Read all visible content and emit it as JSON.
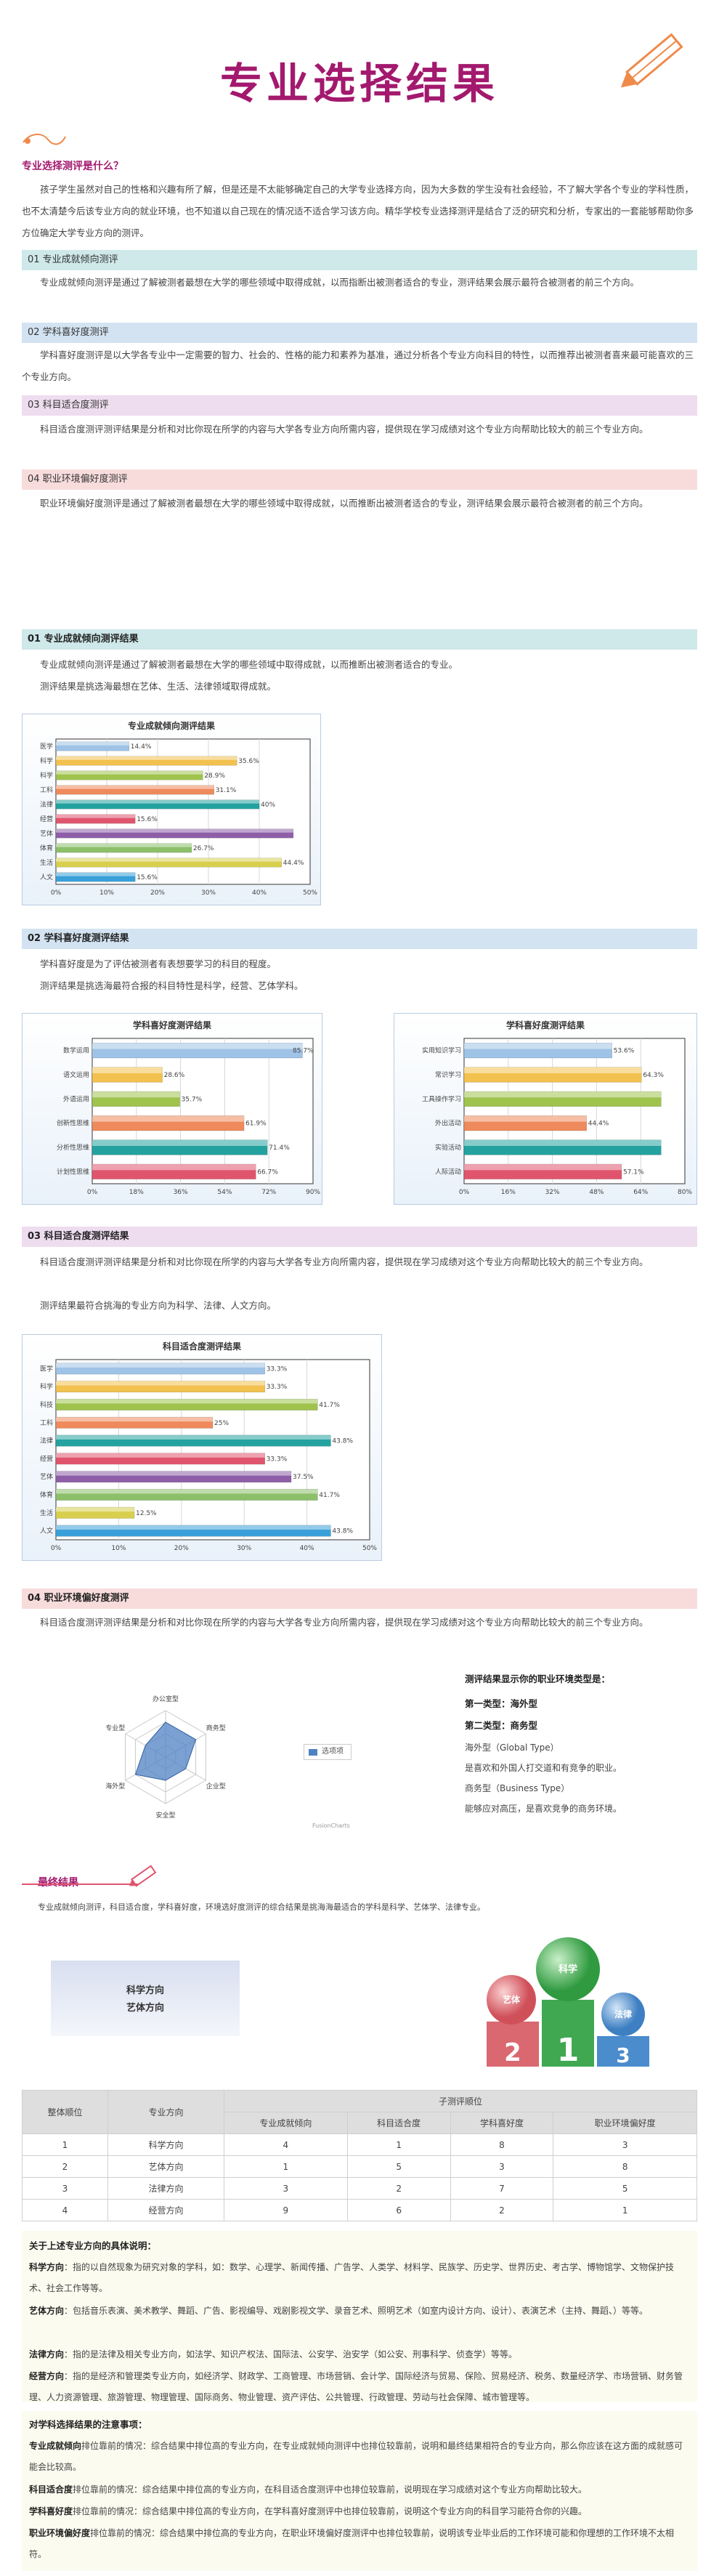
{
  "page_title": "专业选择结果",
  "intro": {
    "heading": "专业选择测评是什么？",
    "text": "孩子学生虽然对自己的性格和兴趣有所了解，但是还是不太能够确定自己的大学专业选择方向，因为大多数的学生没有社会经验，不了解大学各个专业的学科性质，也不太清楚今后该专业方向的就业环境，也不知道以自己现在的情况适不适合学习该方向。精华学校专业选择测评是结合了泛的研究和分析，专家出的一套能够帮助你多方位确定大学专业方向的测评。"
  },
  "overview": [
    {
      "label": "01 专业成就倾向测评",
      "text": "专业成就倾向测评是通过了解被测者最想在大学的哪些领域中取得成就，以而指断出被测者适合的专业，测评结果会展示最符合被测者的前三个方向。"
    },
    {
      "label": "02 学科喜好度测评",
      "text": "学科喜好度测评是以大学各专业中一定需要的智力、社会的、性格的能力和素养为基准，通过分析各个专业方向科目的特性，以而推荐出被测者喜来最可能喜欢的三个专业方向。"
    },
    {
      "label": "03 科目适合度测评",
      "text": "科目适合度测评测评结果是分析和对比你现在所学的内容与大学各专业方向所需内容，提供现在学习成绩对这个专业方向帮助比较大的前三个专业方向。"
    },
    {
      "label": "04 职业环境偏好度测评",
      "text": "职业环境偏好度测评是通过了解被测者最想在大学的哪些领域中取得成就，以而推断出被测者适合的专业，测评结果会展示最符合被测者的前三个方向。"
    }
  ],
  "section1": {
    "label": "01 专业成就倾向测评结果",
    "p1": "专业成就倾向测评是通过了解被测者最想在大学的哪些领域中取得成就，以而推断出被测者适合的专业。",
    "p2": "测评结果是挑选海最想在艺体、生活、法律领域取得成就。"
  },
  "section2": {
    "label": "02 学科喜好度测评结果",
    "p1": "学科喜好度是为了评估被测者有表想要学习的科目的程度。",
    "p2": "测评结果是挑选海最符合报的科目特性是科学，经营、艺体学科。"
  },
  "section3": {
    "label": "03 科目适合度测评结果",
    "p1": "科目适合度测评测评结果是分析和对比你现在所学的内容与大学各专业方向所需内容，提供现在学习成绩对这个专业方向帮助比较大的前三个专业方向。",
    "p2": "测评结果最符合挑海的专业方向为科学、法律、人文方向。"
  },
  "section4": {
    "label": "04 职业环境偏好度测评",
    "p1": "科目适合度测评测评结果是分析和对比你现在所学的内容与大学各专业方向所需内容，提供现在学习成绩对这个专业方向帮助比较大的前三个专业方向。",
    "types_title": "测评结果显示你的职业环境类型是：",
    "type1": "第一类型：海外型",
    "type2": "第二类型：商务型",
    "desc1": "海外型（Global Type）",
    "desc2": "是喜欢和外国人打交道和有竞争的职业。",
    "desc3": "商务型（Business Type）",
    "desc4": "能够应对高压，是喜欢竞争的商务环境。",
    "legend": "选项项",
    "credit": "FusionCharts"
  },
  "final": {
    "heading": "最终结果",
    "text": "专业成就倾向测评，科目适合度，学科喜好度，环境选好度测评的综合结果是挑海海最适合的学科是科学、艺体学、法律专业。",
    "box_line1": "科学方向",
    "box_line2": "艺体方向",
    "podium": [
      "科学",
      "艺体",
      "法律"
    ],
    "podium_nums": [
      "1",
      "2",
      "3"
    ]
  },
  "table": {
    "col_rank": "整体顺位",
    "col_major": "专业方向",
    "col_group": "子测评顺位",
    "sub_cols": [
      "专业成就倾向",
      "科目适合度",
      "学科喜好度",
      "职业环境偏好度"
    ],
    "rows": [
      [
        "1",
        "科学方向",
        "4",
        "1",
        "8",
        "3"
      ],
      [
        "2",
        "艺体方向",
        "1",
        "5",
        "3",
        "8"
      ],
      [
        "3",
        "法律方向",
        "3",
        "2",
        "7",
        "5"
      ],
      [
        "4",
        "经营方向",
        "9",
        "6",
        "2",
        "1"
      ]
    ]
  },
  "notes1": {
    "heading": "关于上述专业方向的具体说明：",
    "items": [
      {
        "k": "科学方向",
        "v": "：指的以自然现象为研究对象的学科，如：数学、心理学、新闻传播、广告学、人类学、材料学、民族学、历史学、世界历史、考古学、博物馆学、文物保护技术、社会工作等等。"
      },
      {
        "k": "艺体方向",
        "v": "：包括音乐表演、美术教学、舞蹈、广告、影视编导、戏剧影视文学、录音艺术、照明艺术（如室内设计方向、设计）、表演艺术（主持、舞蹈、）等等。"
      },
      {
        "k": "法律方向",
        "v": "：指的是法律及相关专业方向，如法学、知识产权法、国际法、公安学、治安学（如公安、刑事科学、侦查学）等等。"
      },
      {
        "k": "经营方向",
        "v": "：指的是经济和管理类专业方向，如经济学、财政学、工商管理、市场营销、会计学、国际经济与贸易、保险、贸易经济、税务、数量经济学、市场营销、财务管理、人力资源管理、旅游管理、物理管理、国际商务、物业管理、资产评估、公共管理、行政管理、劳动与社会保障、城市管理等。"
      }
    ]
  },
  "notes2": {
    "heading": "对学科选择结果的注意事项：",
    "items": [
      {
        "k": "专业成就倾向",
        "v": "排位靠前的情况：综合结果中排位高的专业方向，在专业成就倾向测评中也排位较靠前，说明和最终结果相符合的专业方向，那么你应该在这方面的成就感可能会比较高。"
      },
      {
        "k": "科目适合度",
        "v": "排位靠前的情况：综合结果中排位高的专业方向，在科目适合度测评中也排位较靠前，说明现在学习成绩对这个专业方向帮助比较大。"
      },
      {
        "k": "学科喜好度",
        "v": "排位靠前的情况：综合结果中排位高的专业方向，在学科喜好度测评中也排位较靠前，说明这个专业方向的科目学习能符合你的兴趣。"
      },
      {
        "k": "职业环境偏好度",
        "v": "排位靠前的情况：综合结果中排位高的专业方向，在职业环境偏好度测评中也排位较靠前，说明该专业毕业后的工作环境可能和你理想的工作环境不太相符。"
      }
    ]
  },
  "chart_data": [
    {
      "type": "bar",
      "title": "专业成就倾向测评结果",
      "categories": [
        "医学",
        "科学",
        "科学",
        "工科",
        "法律",
        "经营",
        "艺体",
        "体育",
        "生活",
        "人文"
      ],
      "values": [
        14.4,
        35.6,
        28.9,
        31.1,
        40,
        15.6,
        46.7,
        26.7,
        44.4,
        15.6
      ],
      "labels": [
        "14.4%",
        "35.6%",
        "28.9%",
        "31.1%",
        "40%",
        "15.6%",
        "",
        "26.7%",
        "44.4%",
        "15.6%"
      ],
      "colors": [
        "#9ec3e6",
        "#f2c14e",
        "#9fc34d",
        "#ef8a5c",
        "#23a2a0",
        "#e0556d",
        "#8e5fa8",
        "#8cbf6a",
        "#d8cf4d",
        "#39a0d9"
      ],
      "ticks": [
        "0%",
        "10%",
        "20%",
        "30%",
        "40%",
        "50%"
      ],
      "xlim": [
        0,
        50
      ]
    },
    {
      "type": "bar",
      "title": "学科喜好度测评结果",
      "categories": [
        "数学运用",
        "语文运用",
        "外语运用",
        "创新性思维",
        "分析性思维",
        "计划性思维"
      ],
      "values": [
        85.7,
        28.6,
        35.7,
        61.9,
        71.4,
        66.7
      ],
      "labels": [
        "85.7%",
        "28.6%",
        "35.7%",
        "61.9%",
        "71.4%",
        "66.7%"
      ],
      "colors": [
        "#9ec3e6",
        "#f2c14e",
        "#9fc34d",
        "#ef8a5c",
        "#23a2a0",
        "#e0556d"
      ],
      "ticks": [
        "0%",
        "18%",
        "36%",
        "54%",
        "72%",
        "90%"
      ],
      "xlim": [
        0,
        90
      ]
    },
    {
      "type": "bar",
      "title": "学科喜好度测评结果",
      "categories": [
        "实用知识学习",
        "常识学习",
        "工具操作学习",
        "外出活动",
        "实验活动",
        "人际活动"
      ],
      "values": [
        53.6,
        64.3,
        71.4,
        44.4,
        71.4,
        57.1
      ],
      "labels": [
        "53.6%",
        "64.3%",
        "",
        "44.4%",
        "",
        "57.1%"
      ],
      "colors": [
        "#9ec3e6",
        "#f2c14e",
        "#9fc34d",
        "#ef8a5c",
        "#23a2a0",
        "#e0556d"
      ],
      "ticks": [
        "0%",
        "16%",
        "32%",
        "48%",
        "64%",
        "80%"
      ],
      "xlim": [
        0,
        80
      ]
    },
    {
      "type": "bar",
      "title": "科目适合度测评结果",
      "categories": [
        "医学",
        "科学",
        "科技",
        "工科",
        "法律",
        "经营",
        "艺体",
        "体育",
        "生活",
        "人文"
      ],
      "values": [
        33.3,
        33.3,
        41.7,
        25,
        43.8,
        33.3,
        37.5,
        41.7,
        12.5,
        43.8
      ],
      "labels": [
        "33.3%",
        "33.3%",
        "41.7%",
        "25%",
        "43.8%",
        "33.3%",
        "37.5%",
        "41.7%",
        "12.5%",
        "43.8%"
      ],
      "colors": [
        "#9ec3e6",
        "#f2c14e",
        "#9fc34d",
        "#ef8a5c",
        "#23a2a0",
        "#e0556d",
        "#8e5fa8",
        "#8cbf6a",
        "#d8cf4d",
        "#39a0d9"
      ],
      "ticks": [
        "0%",
        "10%",
        "20%",
        "30%",
        "40%",
        "50%"
      ],
      "xlim": [
        0,
        50
      ]
    },
    {
      "type": "radar",
      "axes": [
        "办公室型",
        "商务型",
        "企业型",
        "安全型",
        "海外型",
        "专业型"
      ],
      "values": [
        3,
        3,
        2,
        2,
        3,
        2
      ],
      "max": 4,
      "color": "#4f82c4"
    }
  ]
}
